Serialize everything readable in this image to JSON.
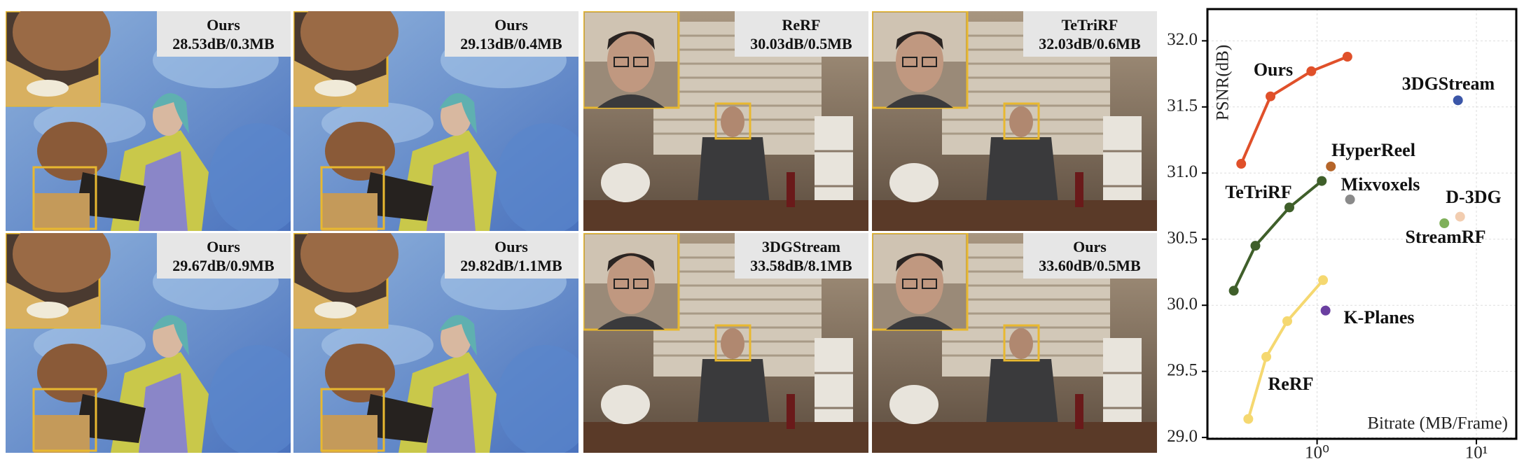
{
  "panels": [
    {
      "method": "Ours",
      "metric": "28.53dB/0.3MB"
    },
    {
      "method": "Ours",
      "metric": "29.13dB/0.4MB"
    },
    {
      "method": "ReRF",
      "metric": "30.03dB/0.5MB"
    },
    {
      "method": "TeTriRF",
      "metric": "32.03dB/0.6MB"
    },
    {
      "method": "Ours",
      "metric": "29.67dB/0.9MB"
    },
    {
      "method": "Ours",
      "metric": "29.82dB/1.1MB"
    },
    {
      "method": "3DGStream",
      "metric": "33.58dB/8.1MB"
    },
    {
      "method": "Ours",
      "metric": "33.60dB/0.5MB"
    }
  ],
  "chart_data": {
    "type": "line",
    "xlabel": "Bitrate (MB/Frame)",
    "ylabel": "PSNR(dB)",
    "xscale": "log",
    "grid": true,
    "xlim": [
      0.205,
      17.8
    ],
    "ylim": [
      28.99,
      32.24
    ],
    "xticks": [
      {
        "value": 1,
        "label": "10⁰"
      },
      {
        "value": 10,
        "label": "10¹"
      }
    ],
    "yticks": [
      {
        "value": 29,
        "label": "29.0"
      },
      {
        "value": 29.5,
        "label": "29.5"
      },
      {
        "value": 30,
        "label": "30.0"
      },
      {
        "value": 30.5,
        "label": "30.5"
      },
      {
        "value": 31,
        "label": "31.0"
      },
      {
        "value": 31.5,
        "label": "31.5"
      },
      {
        "value": 32,
        "label": "32.0"
      }
    ],
    "series": [
      {
        "name": "Ours",
        "color": "#e0502a",
        "x": [
          0.334,
          0.51,
          0.92,
          1.55
        ],
        "values": [
          31.07,
          31.58,
          31.77,
          31.88
        ]
      },
      {
        "name": "3DGStream",
        "color": "#3b56a8",
        "x": [
          7.66
        ],
        "values": [
          31.55
        ]
      },
      {
        "name": "HyperReel",
        "color": "#b5652a",
        "x": [
          1.22
        ],
        "values": [
          31.05
        ]
      },
      {
        "name": "TeTriRF",
        "color": "#3f5f2a",
        "x": [
          0.3,
          0.41,
          0.67,
          1.07
        ],
        "values": [
          30.11,
          30.45,
          30.74,
          30.94
        ]
      },
      {
        "name": "Mixvoxels",
        "color": "#8a8a8a",
        "x": [
          1.61
        ],
        "values": [
          30.8
        ]
      },
      {
        "name": "D-3DG",
        "color": "#f2cdb0",
        "x": [
          7.9
        ],
        "values": [
          30.67
        ]
      },
      {
        "name": "StreamRF",
        "color": "#7fb05a",
        "x": [
          6.29
        ],
        "values": [
          30.62
        ]
      },
      {
        "name": "K-Planes",
        "color": "#6a3fa0",
        "x": [
          1.13
        ],
        "values": [
          29.96
        ]
      },
      {
        "name": "ReRF",
        "color": "#f5d870",
        "x": [
          0.37,
          0.48,
          0.65,
          1.09
        ],
        "values": [
          29.14,
          29.61,
          29.88,
          30.19
        ]
      }
    ]
  }
}
